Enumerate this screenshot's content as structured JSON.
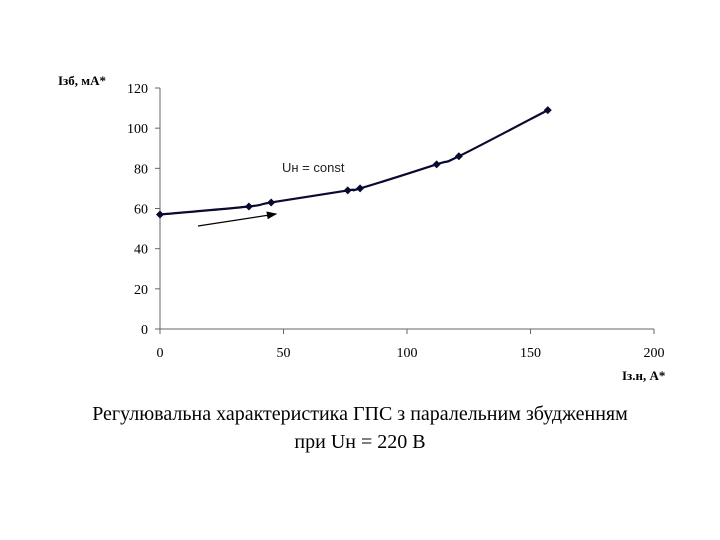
{
  "chart_data": {
    "type": "line",
    "xlabel": "Iз.н, А*",
    "ylabel": "Iзб, мА*",
    "xlim": [
      0,
      200
    ],
    "ylim": [
      0,
      120
    ],
    "x_ticks": [
      0,
      50,
      100,
      150,
      200
    ],
    "y_ticks": [
      0,
      20,
      40,
      60,
      80,
      100,
      120
    ],
    "grid": false,
    "annotation": "Uн = const",
    "series": [
      {
        "color": "#0a0a30",
        "x": [
          0,
          36,
          45,
          76,
          81,
          112,
          121,
          157
        ],
        "y": [
          57,
          61,
          63,
          69,
          70,
          82,
          86,
          109
        ]
      }
    ]
  },
  "caption": {
    "line1": "Регулювальна характеристика ГПС з паралельним збудженням",
    "line2": "при Uн = 220 В"
  }
}
